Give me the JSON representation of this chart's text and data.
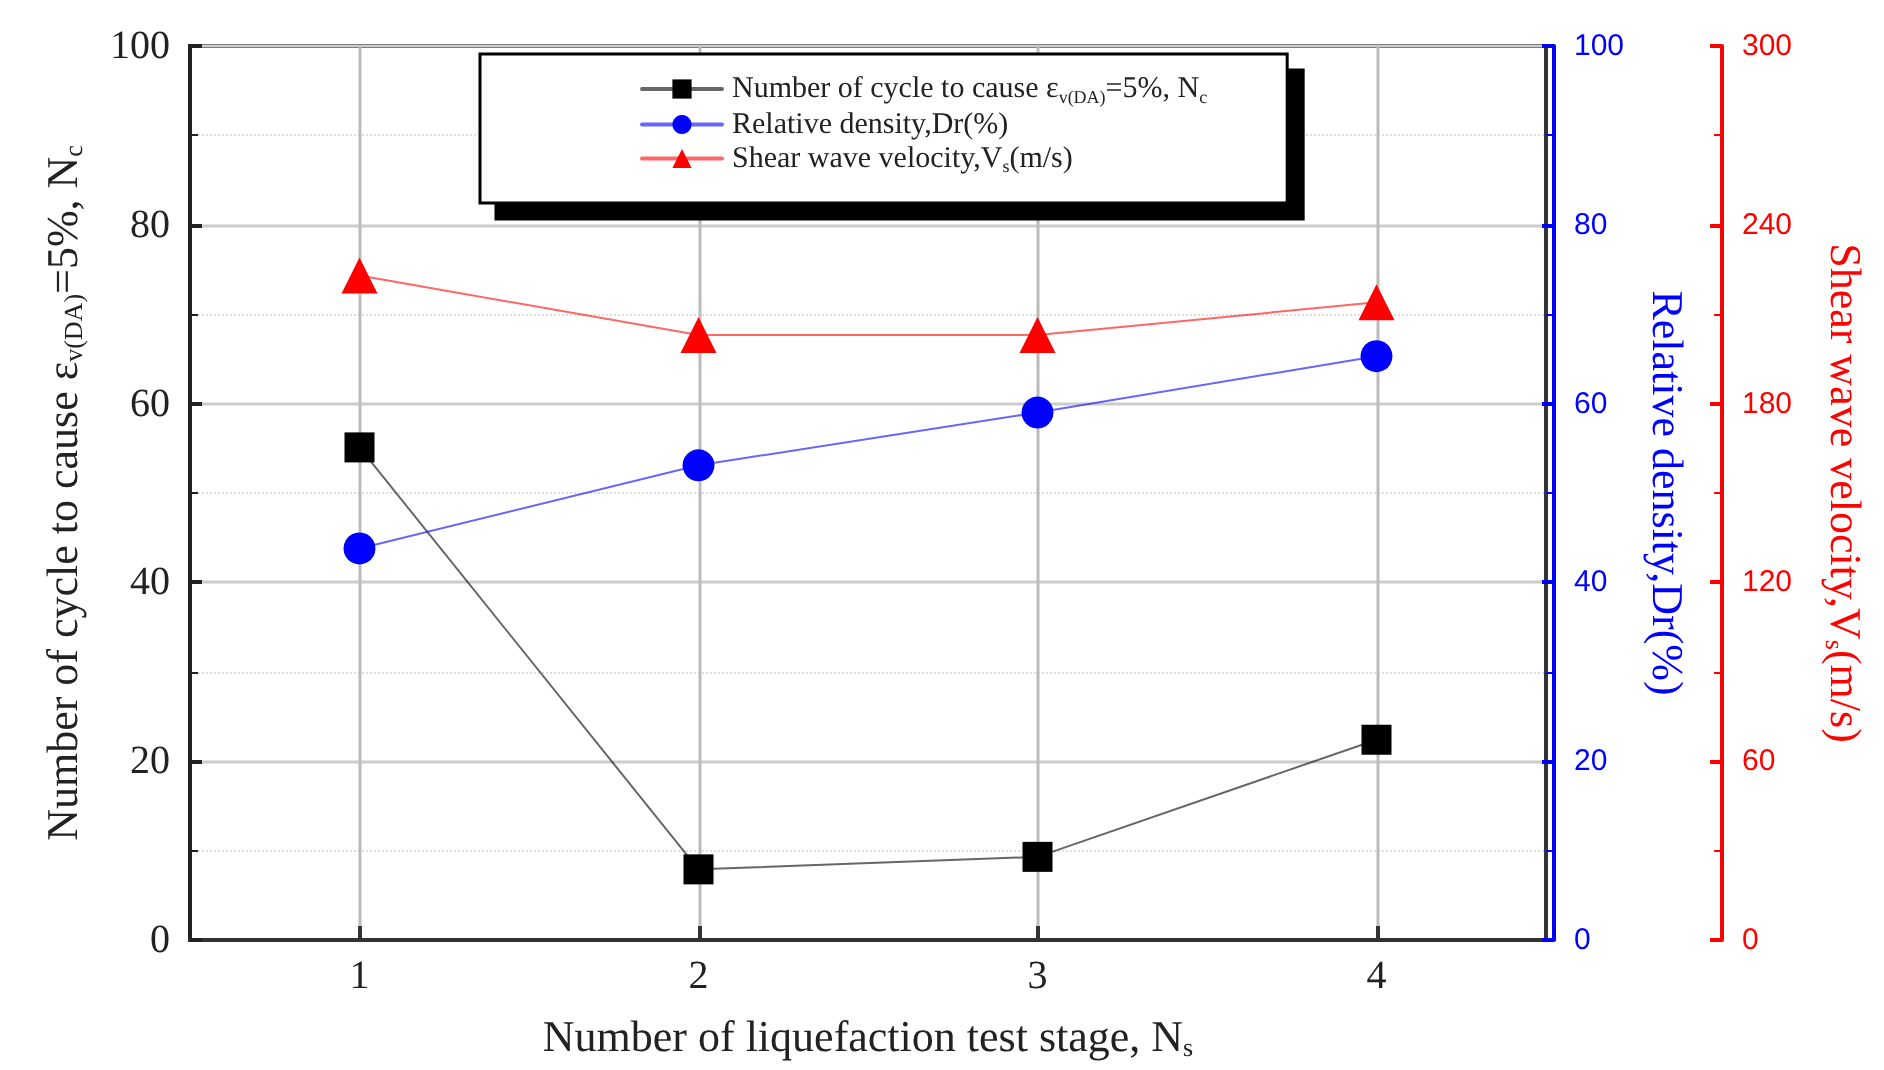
{
  "chart_data": {
    "type": "line",
    "xlabel": "Number of liquefaction test stage, N$_{s}$",
    "ylabel": "Number of cycle to cause ε$_{v(DA)}$=5%, N$_{c}$",
    "y2label": "Relative density,Dr(%)",
    "y3label": "Shear wave velocity,V$_{s}$(m/s)",
    "x": [
      1,
      2,
      3,
      4
    ],
    "xlim": [
      0.5,
      4.5
    ],
    "xticks": [
      1,
      2,
      3,
      4
    ],
    "ylim": [
      0,
      100
    ],
    "yticks": [
      0,
      20,
      40,
      60,
      80,
      100
    ],
    "y2lim": [
      0,
      100
    ],
    "y2ticks": [
      0,
      20,
      40,
      60,
      80,
      100
    ],
    "y3lim": [
      0,
      300
    ],
    "y3ticks": [
      0,
      60,
      120,
      180,
      240,
      300
    ],
    "grid": true,
    "legend": "top",
    "line_style": "solid",
    "series": [
      {
        "name": "Number of cycle to cause ε$_{v(DA)}$=5%, N$_{c}$",
        "color": "#000000",
        "marker": "square",
        "values": [
          55.1,
          7.9,
          9.3,
          22.4
        ]
      },
      {
        "name": "Relative density,Dr(%)",
        "color": "#0000ff",
        "marker": "circle",
        "axis": "y2",
        "values": [
          43.8,
          53.1,
          59.0,
          65.3
        ]
      },
      {
        "name": "Shear wave velocity,V$_{s}$(m/s)",
        "color": "#ff0000",
        "marker": "triangle",
        "axis": "y3",
        "values": [
          223,
          203,
          203,
          214
        ]
      }
    ]
  }
}
